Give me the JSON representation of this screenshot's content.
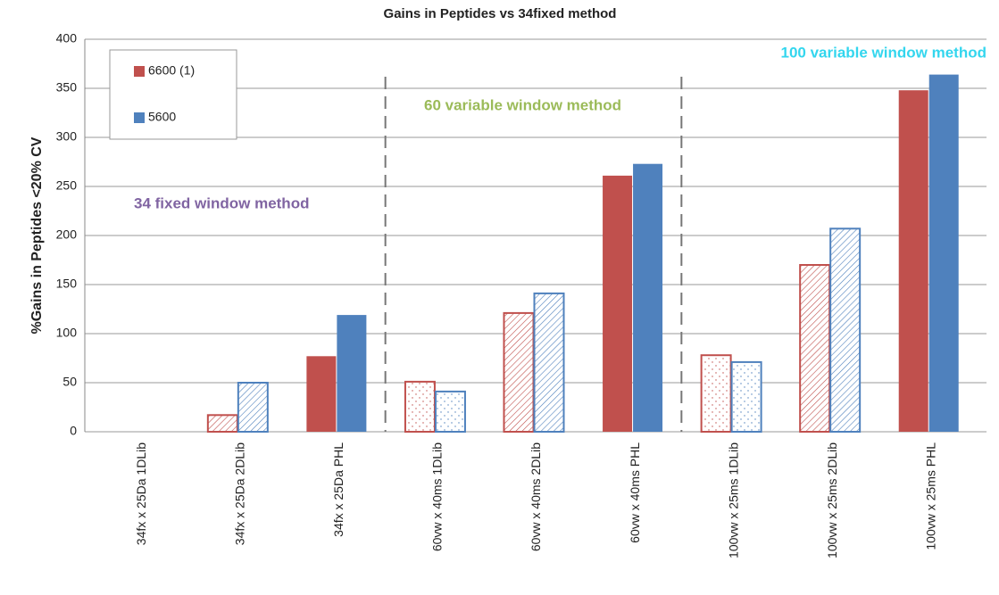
{
  "chart_data": {
    "type": "bar",
    "title": "Gains in Peptides vs 34fixed method",
    "y_label": "%Gains in Peptides <20% CV",
    "categories": [
      "34fx x 25Da 1DLib",
      "34fx x 25Da 2DLib",
      "34fx x 25Da PHL",
      "60vw x 40ms 1DLib",
      "60vw x 40ms 2DLib",
      "60vw x 40ms PHL",
      "100vw x 25ms 1DLib",
      "100vw x 25ms 2DLib",
      "100vw x 25ms PHL"
    ],
    "fill_styles": [
      "dots",
      "hatch",
      "solid",
      "dots",
      "hatch",
      "solid",
      "dots",
      "hatch",
      "solid"
    ],
    "series": [
      {
        "name": "6600 (1)",
        "color": "#c0504d",
        "values": [
          0,
          17,
          77,
          51,
          121,
          261,
          78,
          170,
          348
        ]
      },
      {
        "name": "5600",
        "color": "#4f81bd",
        "values": [
          0,
          50,
          119,
          41,
          141,
          273,
          71,
          207,
          364
        ]
      }
    ],
    "annotations": [
      {
        "text": "34 fixed window method",
        "color": "#8064a2"
      },
      {
        "text": "60 variable window method",
        "color": "#9bbb59"
      },
      {
        "text": "100 variable window method",
        "color": "#33d6ee"
      }
    ],
    "ylim": [
      0,
      400
    ],
    "yticks": [
      0,
      50,
      100,
      150,
      200,
      250,
      300,
      350,
      400
    ],
    "grid": true,
    "legend": "upper left"
  }
}
